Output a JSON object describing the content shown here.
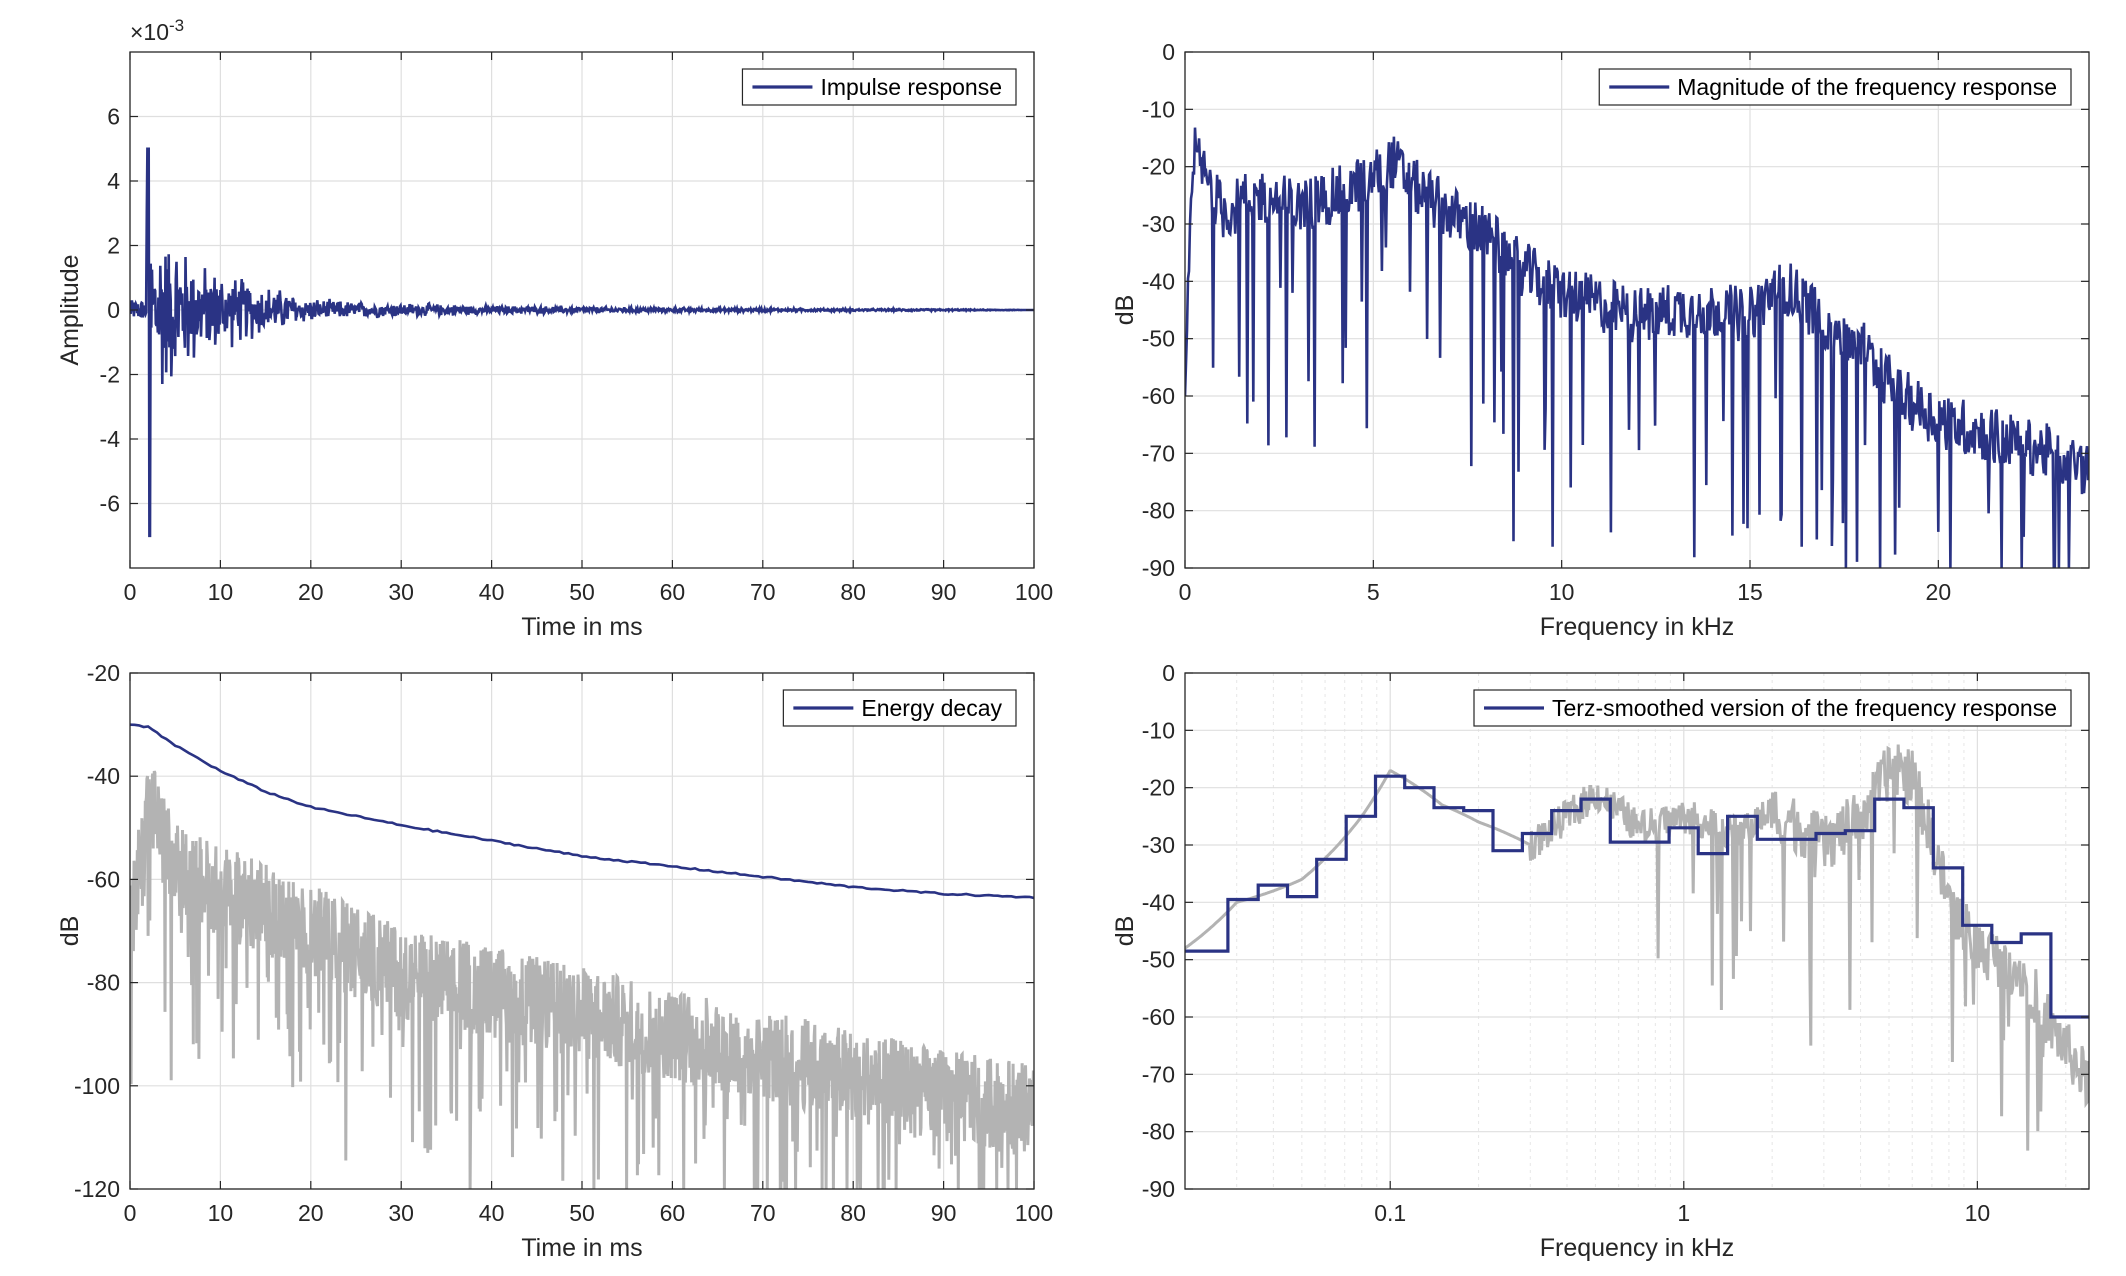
{
  "chart_data": [
    {
      "type": "line",
      "position": "top-left",
      "xlabel": "Time in ms",
      "ylabel": "Amplitude",
      "exponent_label": "×10",
      "exponent_power": "-3",
      "xlim": [
        0,
        100
      ],
      "ylim": [
        -8,
        8
      ],
      "xticks": [
        0,
        10,
        20,
        30,
        40,
        50,
        60,
        70,
        80,
        90,
        100
      ],
      "xtick_labels": [
        "0",
        "10",
        "20",
        "30",
        "40",
        "50",
        "60",
        "70",
        "80",
        "90",
        "100"
      ],
      "yticks": [
        -6,
        -4,
        -2,
        0,
        2,
        4,
        6
      ],
      "ytick_labels": [
        "-6",
        "-4",
        "-2",
        "0",
        "2",
        "4",
        "6"
      ],
      "grid": true,
      "legend_position": "top-right",
      "series": [
        {
          "name": "Impulse response",
          "color": "#2a3384",
          "x": [
            0,
            0.5,
            1.0,
            1.5,
            2.0,
            2.2,
            2.5,
            3.0,
            3.5,
            4.0,
            5.0,
            6.0,
            7.0,
            8.0,
            9.0,
            10.0,
            12.0,
            14.0,
            16.0,
            18.0,
            20.0,
            25.0,
            30.0,
            35.0,
            40.0,
            50.0,
            60.0,
            70.0,
            80.0,
            90.0,
            100.0
          ],
          "y": [
            0.1,
            -0.3,
            0.6,
            -1.2,
            5.0,
            -7.0,
            2.5,
            -3.2,
            3.5,
            -2.6,
            2.6,
            -2.2,
            2.0,
            -1.6,
            1.5,
            -1.4,
            1.2,
            -1.0,
            0.8,
            -0.6,
            0.4,
            -0.3,
            0.25,
            -0.2,
            0.15,
            -0.12,
            0.08,
            -0.06,
            0.04,
            -0.03,
            0.0
          ]
        }
      ]
    },
    {
      "type": "line",
      "position": "top-right",
      "xlabel": "Frequency in kHz",
      "ylabel": "dB",
      "xlim": [
        0,
        24
      ],
      "ylim": [
        -90,
        0
      ],
      "xticks": [
        0,
        5,
        10,
        15,
        20
      ],
      "xtick_labels": [
        "0",
        "5",
        "10",
        "15",
        "20"
      ],
      "yticks": [
        0,
        -10,
        -20,
        -30,
        -40,
        -50,
        -60,
        -70,
        -80,
        -90
      ],
      "ytick_labels": [
        "0",
        "-10",
        "-20",
        "-30",
        "-40",
        "-50",
        "-60",
        "-70",
        "-80",
        "-90"
      ],
      "grid": true,
      "legend_position": "top-right",
      "series": [
        {
          "name": "Magnitude of the frequency response",
          "color": "#2a3384",
          "x": [
            0,
            0.2,
            1,
            2,
            3,
            4,
            5,
            5.5,
            6,
            7,
            8,
            9,
            10,
            11,
            12,
            13,
            14,
            15,
            15.8,
            17,
            18,
            19,
            20,
            21,
            22,
            23,
            24
          ],
          "y": [
            -60,
            -17,
            -28,
            -25,
            -27,
            -25,
            -22,
            -19,
            -23,
            -28,
            -32,
            -38,
            -42,
            -44,
            -46,
            -45,
            -45,
            -46,
            -40,
            -47,
            -52,
            -60,
            -64,
            -66,
            -68,
            -70,
            -73
          ]
        }
      ]
    },
    {
      "type": "line",
      "position": "bottom-left",
      "xlabel": "Time in ms",
      "ylabel": "dB",
      "xlim": [
        0,
        100
      ],
      "ylim": [
        -120,
        -20
      ],
      "xticks": [
        0,
        10,
        20,
        30,
        40,
        50,
        60,
        70,
        80,
        90,
        100
      ],
      "xtick_labels": [
        "0",
        "10",
        "20",
        "30",
        "40",
        "50",
        "60",
        "70",
        "80",
        "90",
        "100"
      ],
      "yticks": [
        -20,
        -40,
        -60,
        -80,
        -100,
        -120
      ],
      "ytick_labels": [
        "-20",
        "-40",
        "-60",
        "-80",
        "-100",
        "-120"
      ],
      "grid": true,
      "legend_position": "top-right",
      "series": [
        {
          "name": "Energy decay",
          "color": "#2a3384",
          "x": [
            0,
            2,
            5,
            10,
            15,
            20,
            30,
            40,
            50,
            60,
            70,
            80,
            90,
            100
          ],
          "y": [
            -30,
            -30.5,
            -34,
            -39,
            -43,
            -46,
            -49.5,
            -52.5,
            -55.5,
            -57.5,
            -59.5,
            -61.5,
            -62.8,
            -63.5
          ]
        },
        {
          "color": "#b3b3b3",
          "x": [
            0,
            2,
            5,
            10,
            20,
            30,
            40,
            50,
            60,
            70,
            80,
            90,
            100
          ],
          "y": [
            -70,
            -45,
            -58,
            -62,
            -70,
            -78,
            -82,
            -86,
            -90,
            -94,
            -98,
            -102,
            -105
          ]
        }
      ]
    },
    {
      "type": "line",
      "position": "bottom-right",
      "xlabel": "Frequency in kHz",
      "ylabel": "dB",
      "xscale": "log",
      "xlim": [
        0.02,
        24
      ],
      "ylim": [
        -90,
        0
      ],
      "xticks": [
        0.1,
        1,
        10
      ],
      "xtick_labels": [
        "0.1",
        "1",
        "10"
      ],
      "yticks": [
        0,
        -10,
        -20,
        -30,
        -40,
        -50,
        -60,
        -70,
        -80,
        -90
      ],
      "ytick_labels": [
        "0",
        "-10",
        "-20",
        "-30",
        "-40",
        "-50",
        "-60",
        "-70",
        "-80",
        "-90"
      ],
      "grid": true,
      "legend_position": "top-right",
      "series": [
        {
          "name": "Terz-smoothed version of the frequency response",
          "color": "#2a3384",
          "step_edges": [
            0.02,
            0.028,
            0.0355,
            0.0447,
            0.0562,
            0.0708,
            0.0891,
            0.112,
            0.141,
            0.178,
            0.224,
            0.282,
            0.355,
            0.447,
            0.562,
            0.708,
            0.891,
            1.12,
            1.41,
            1.78,
            2.24,
            2.82,
            3.55,
            4.47,
            5.62,
            7.08,
            8.91,
            11.2,
            14.1,
            17.8,
            24
          ],
          "values": [
            -48.5,
            -39.5,
            -37,
            -39,
            -32.5,
            -25,
            -18,
            -20,
            -23.5,
            -24,
            -31,
            -28,
            -24,
            -22,
            -29.5,
            -29.5,
            -27,
            -31.5,
            -25,
            -29,
            -29,
            -28,
            -27.5,
            -22,
            -23.5,
            -34,
            -44,
            -47,
            -45.5,
            -60
          ]
        },
        {
          "color": "#b3b3b3",
          "x": [
            0.02,
            0.03,
            0.05,
            0.08,
            0.1,
            0.15,
            0.2,
            0.3,
            0.4,
            0.5,
            0.7,
            1,
            1.5,
            2,
            3,
            4,
            5,
            6,
            8,
            10,
            14,
            18,
            24
          ],
          "y": [
            -48,
            -40,
            -36,
            -25,
            -17,
            -23,
            -26,
            -30,
            -25,
            -21,
            -27,
            -25,
            -28,
            -24,
            -30,
            -25,
            -17,
            -18,
            -40,
            -48,
            -52,
            -62,
            -72
          ]
        }
      ]
    }
  ]
}
